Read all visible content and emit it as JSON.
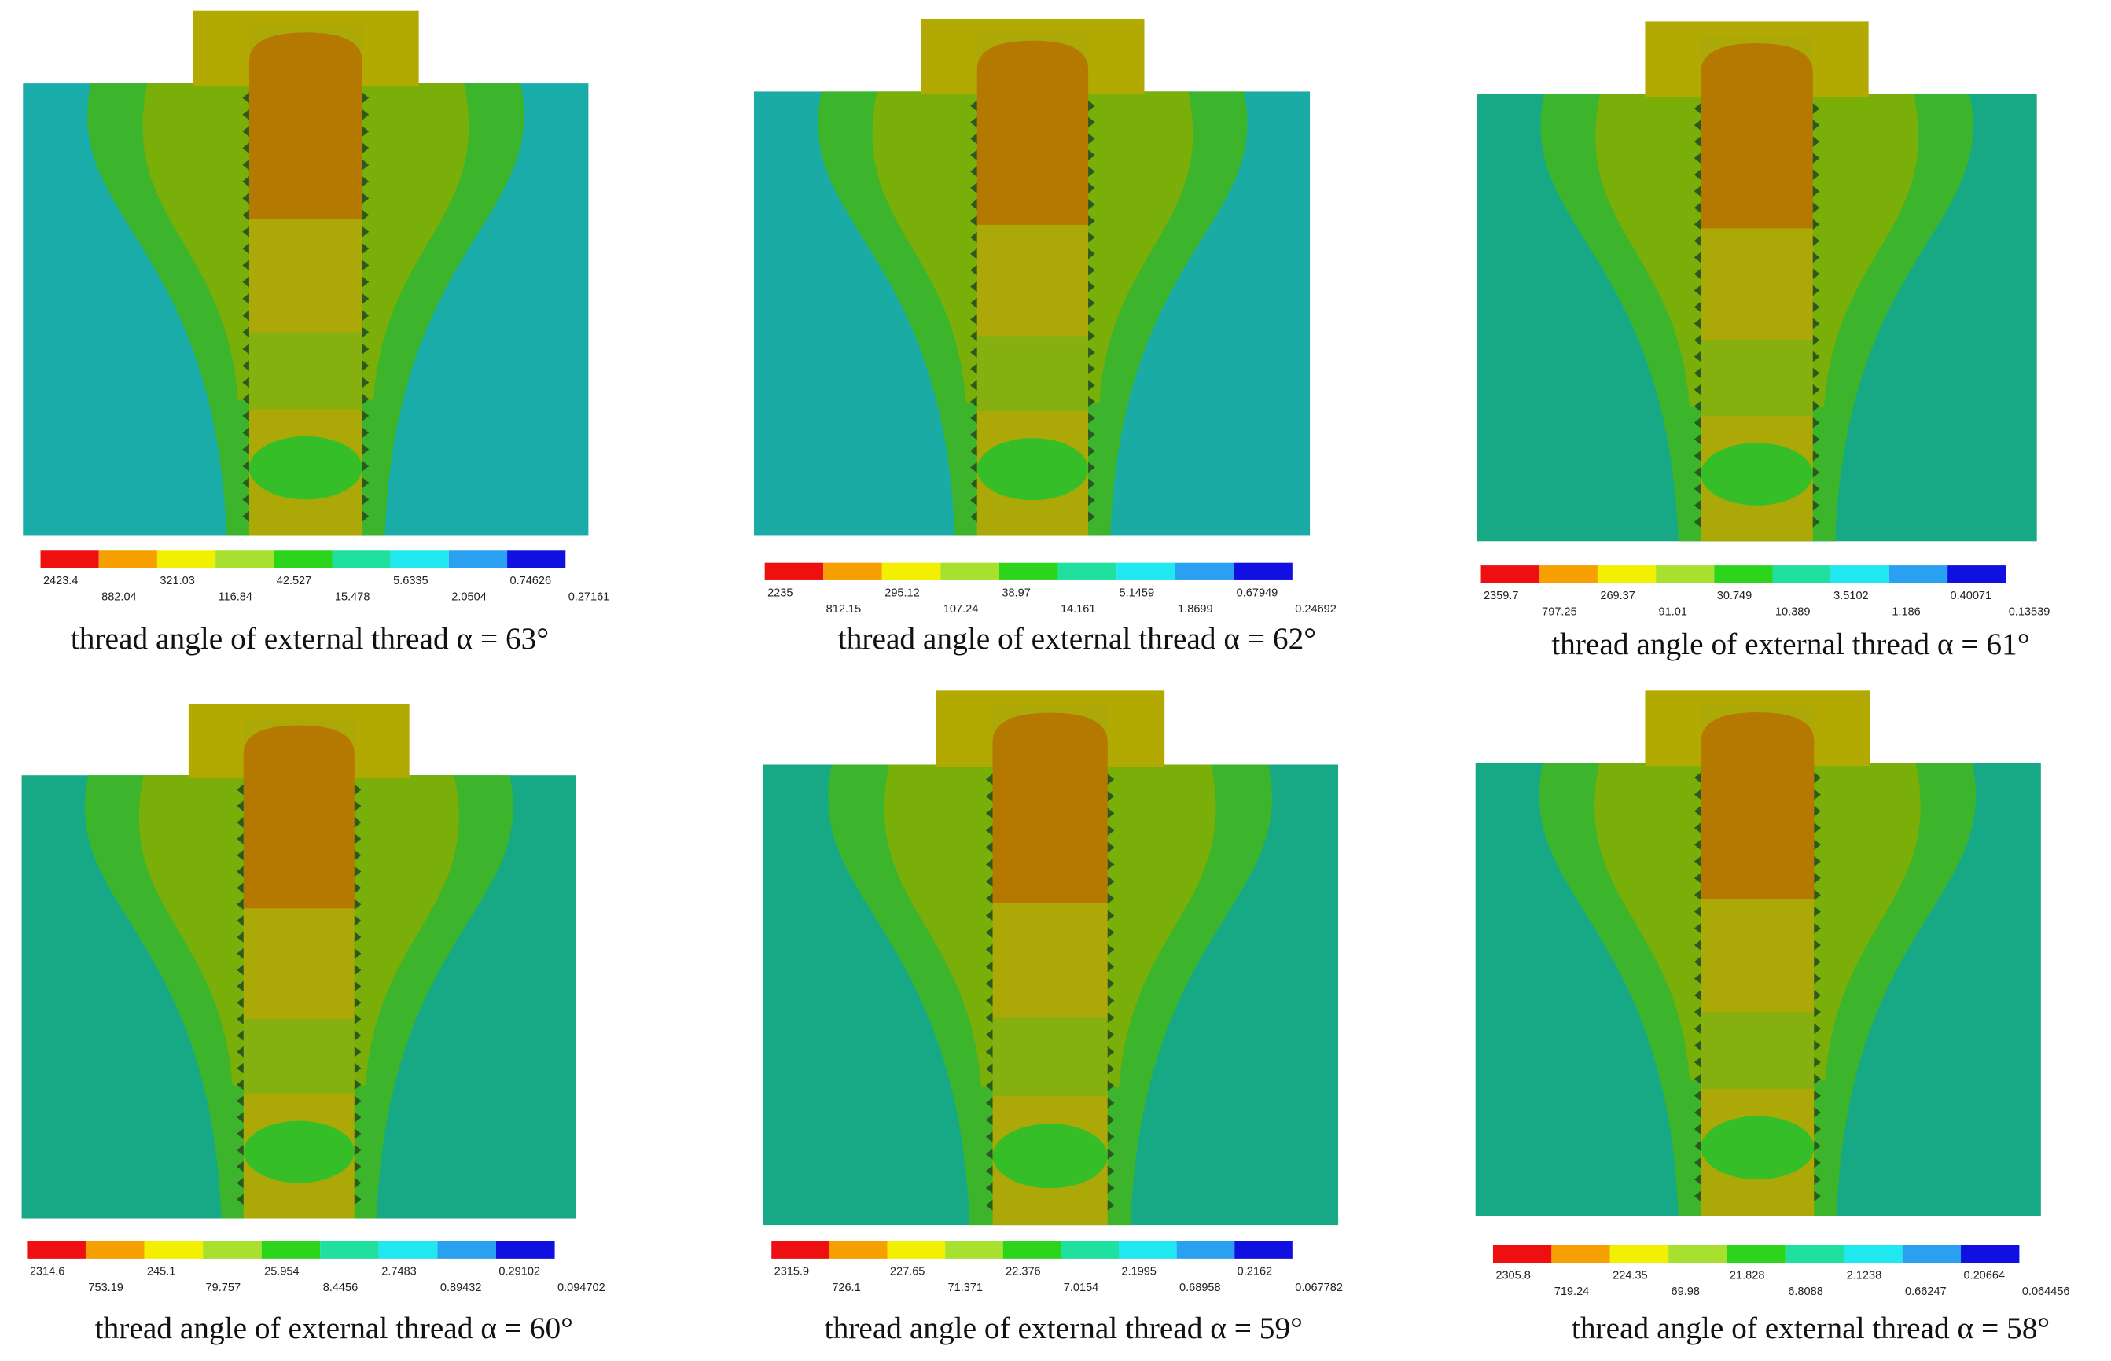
{
  "panels": [
    {
      "legend_labels": [
        "2423.4",
        "882.04",
        "321.03",
        "116.84",
        "42.527",
        "15.478",
        "5.6335",
        "2.0504",
        "0.74626",
        "0.27161"
      ],
      "caption": "thread angle of external thread α = 63°"
    },
    {
      "legend_labels": [
        "2235",
        "812.15",
        "295.12",
        "107.24",
        "38.97",
        "14.161",
        "5.1459",
        "1.8699",
        "0.67949",
        "0.24692"
      ],
      "caption": "thread angle of external thread α = 62°"
    },
    {
      "legend_labels": [
        "2359.7",
        "797.25",
        "269.37",
        "91.01",
        "30.749",
        "10.389",
        "3.5102",
        "1.186",
        "0.40071",
        "0.13539"
      ],
      "caption": "thread angle of external thread α = 61°"
    },
    {
      "legend_labels": [
        "2314.6",
        "753.19",
        "245.1",
        "79.757",
        "25.954",
        "8.4456",
        "2.7483",
        "0.89432",
        "0.29102",
        "0.094702"
      ],
      "caption": "thread angle of external thread α = 60°"
    },
    {
      "legend_labels": [
        "2315.9",
        "726.1",
        "227.65",
        "71.371",
        "22.376",
        "7.0154",
        "2.1995",
        "0.68958",
        "0.2162",
        "0.067782"
      ],
      "caption": "thread angle of external thread α = 59°"
    },
    {
      "legend_labels": [
        "2305.8",
        "719.24",
        "224.35",
        "69.98",
        "21.828",
        "6.8088",
        "2.1238",
        "0.66247",
        "0.20664",
        "0.064456"
      ],
      "caption": "thread angle of external thread α = 58°"
    }
  ]
}
